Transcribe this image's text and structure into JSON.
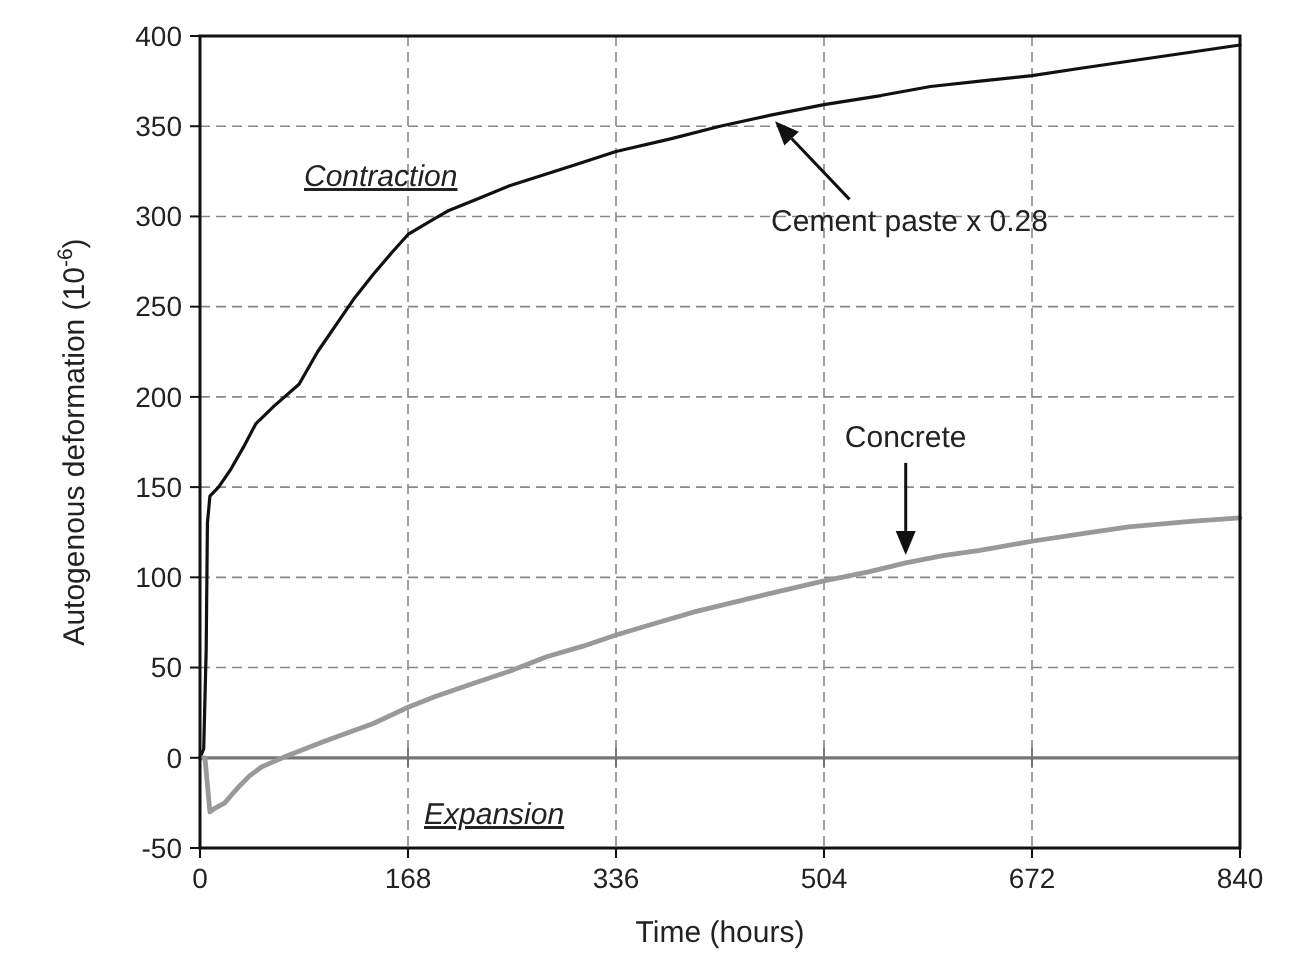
{
  "chart_data": {
    "type": "line",
    "xlabel": "Time (hours)",
    "ylabel": "Autogenous deformation  (10$^{-6}$)",
    "xlim": [
      0,
      840
    ],
    "xticks": [
      0,
      168,
      336,
      504,
      672,
      840
    ],
    "ylim": [
      -50,
      400
    ],
    "yticks": [
      -50,
      0,
      50,
      100,
      150,
      200,
      250,
      300,
      350,
      400
    ],
    "grid": true,
    "line_style": "solid",
    "marker": "none",
    "ref_lines": [
      {
        "axis": "y",
        "value": 0,
        "color": "#777777"
      }
    ],
    "annotations": [
      "Contraction",
      "Expansion"
    ],
    "series": [
      {
        "name": "Cement paste x 0.28",
        "color": "#111111",
        "x": [
          0,
          3,
          5,
          6,
          8,
          15,
          25,
          35,
          45,
          60,
          80,
          95,
          110,
          125,
          140,
          155,
          168,
          185,
          200,
          225,
          250,
          300,
          336,
          380,
          420,
          460,
          504,
          550,
          590,
          630,
          672,
          710,
          750,
          800,
          840
        ],
        "values": [
          0,
          5,
          60,
          130,
          145,
          150,
          160,
          172,
          185,
          195,
          207,
          225,
          240,
          255,
          268,
          280,
          290,
          297,
          303,
          310,
          317,
          328,
          336,
          343,
          350,
          356,
          362,
          367,
          372,
          375,
          378,
          382,
          386,
          391,
          395
        ]
      },
      {
        "name": "Concrete",
        "color": "#999999",
        "x": [
          0,
          4,
          6,
          8,
          12,
          20,
          30,
          40,
          50,
          60,
          70,
          85,
          100,
          120,
          140,
          168,
          190,
          220,
          250,
          280,
          310,
          336,
          370,
          400,
          430,
          460,
          504,
          540,
          570,
          600,
          630,
          672,
          710,
          750,
          800,
          840
        ],
        "values": [
          0,
          0,
          -15,
          -30,
          -28,
          -25,
          -17,
          -10,
          -5,
          -2,
          1,
          5,
          9,
          14,
          19,
          28,
          34,
          41,
          48,
          56,
          62,
          68,
          75,
          81,
          86,
          91,
          98,
          103,
          108,
          112,
          115,
          120,
          124,
          128,
          131,
          133
        ]
      }
    ]
  }
}
